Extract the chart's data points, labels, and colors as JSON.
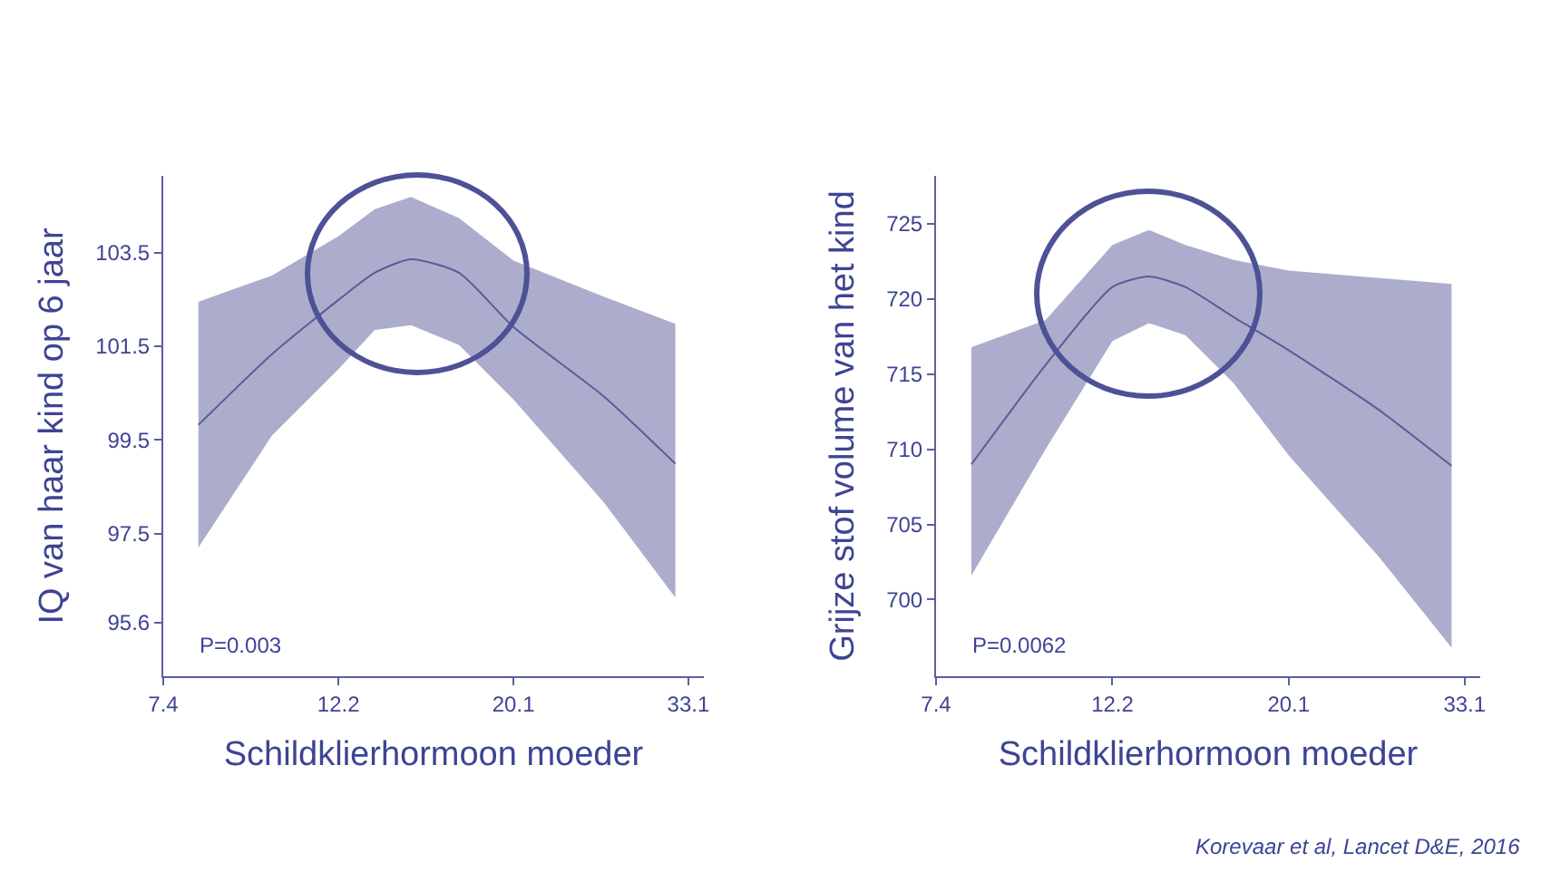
{
  "chart_data": [
    {
      "type": "line",
      "xlabel": "Schildklierhormoon moeder",
      "ylabel": "IQ van haar kind op 6 jaar",
      "log": "x",
      "grid": false,
      "marker": "none",
      "line_style": "solid",
      "x": [
        8.18,
        10.09,
        12.2,
        13.53,
        15.0,
        17.2,
        20.1,
        26.0,
        31.9
      ],
      "series": [
        {
          "color": "#5a5c9a",
          "values": [
            99.82,
            101.33,
            102.49,
            103.07,
            103.36,
            103.07,
            101.91,
            100.43,
            98.99
          ],
          "upper": [
            102.45,
            103.01,
            103.85,
            104.43,
            104.69,
            104.24,
            103.33,
            102.56,
            101.98
          ],
          "lower": [
            97.2,
            99.59,
            101.01,
            101.85,
            101.95,
            101.53,
            100.36,
            98.17,
            96.13
          ]
        }
      ],
      "xlim": [
        7.4,
        34.6
      ],
      "xticks": [
        7.4,
        12.2,
        20.1,
        33.1
      ],
      "ylim": [
        94.45,
        105.14
      ],
      "yticks": [
        95.6,
        97.5,
        99.5,
        101.5,
        103.5
      ],
      "annotations": [
        "P=0.003"
      ]
    },
    {
      "type": "line",
      "xlabel": "Schildklierhormoon moeder",
      "ylabel": "Grijze stof volume van het kind",
      "log": "x",
      "grid": false,
      "marker": "none",
      "line_style": "solid",
      "x": [
        8.18,
        10.09,
        12.2,
        13.53,
        15.0,
        17.2,
        20.1,
        26.0,
        31.9
      ],
      "series": [
        {
          "color": "#5a5c9a",
          "values": [
            709.0,
            715.6,
            720.8,
            721.5,
            720.8,
            718.8,
            716.6,
            712.6,
            708.9
          ],
          "upper": [
            716.8,
            718.6,
            723.6,
            724.6,
            723.6,
            722.6,
            721.9,
            721.4,
            721.0
          ],
          "lower": [
            701.6,
            710.0,
            717.2,
            718.4,
            717.6,
            714.4,
            709.6,
            702.8,
            696.8
          ]
        }
      ],
      "xlim": [
        7.4,
        34.6
      ],
      "xticks": [
        7.4,
        12.2,
        20.1,
        33.1
      ],
      "ylim": [
        694.9,
        728.2
      ],
      "yticks": [
        700,
        705,
        710,
        715,
        720,
        725
      ],
      "annotations": [
        "P=0.0062",
        "Korevaar et al, Lancet D&E, 2016"
      ]
    }
  ]
}
